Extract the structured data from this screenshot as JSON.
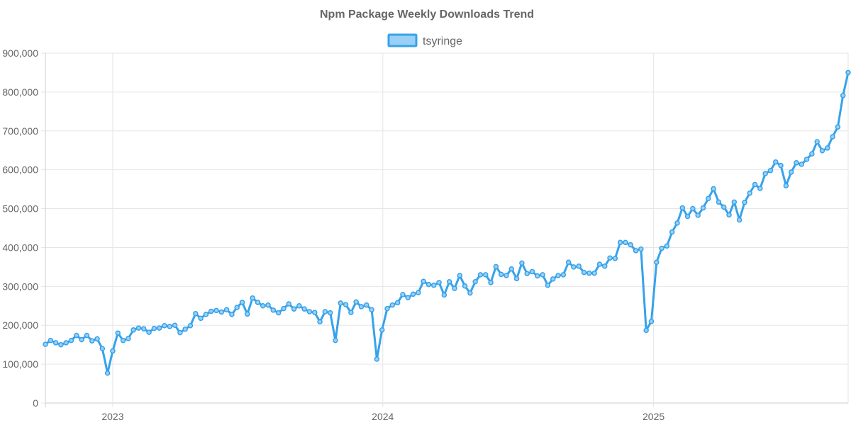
{
  "chart_data": {
    "type": "line",
    "title": "Npm Package Weekly Downloads Trend",
    "xlabel": "",
    "ylabel": "",
    "ylim": [
      0,
      900000
    ],
    "yticks": [
      0,
      100000,
      200000,
      300000,
      400000,
      500000,
      600000,
      700000,
      800000,
      900000
    ],
    "ytick_labels": [
      "0",
      "100,000",
      "200,000",
      "300,000",
      "400,000",
      "500,000",
      "600,000",
      "700,000",
      "800,000",
      "900,000"
    ],
    "xlim": [
      "2022-10-02",
      "2025-09-21"
    ],
    "xticks": [
      "2023-01-01",
      "2024-01-01",
      "2025-01-01"
    ],
    "xtick_labels": [
      "2023",
      "2024",
      "2025"
    ],
    "grid": true,
    "legend": {
      "position": "top-center"
    },
    "colors": {
      "line": "#36a2eb",
      "fill": "#9ad0f5"
    },
    "x_start": "2022-10-02",
    "x_step_days": 7,
    "series": [
      {
        "name": "tsyringe",
        "values": [
          151000,
          161000,
          155000,
          150000,
          155000,
          161000,
          174000,
          163000,
          174000,
          160000,
          165000,
          140000,
          77000,
          134000,
          180000,
          161000,
          166000,
          188000,
          193000,
          191000,
          182000,
          192000,
          193000,
          199000,
          197000,
          200000,
          181000,
          190000,
          199000,
          230000,
          218000,
          228000,
          236000,
          238000,
          234000,
          240000,
          228000,
          246000,
          259000,
          229000,
          270000,
          259000,
          250000,
          252000,
          239000,
          232000,
          243000,
          255000,
          242000,
          250000,
          242000,
          235000,
          233000,
          209000,
          235000,
          232000,
          161000,
          257000,
          253000,
          233000,
          260000,
          248000,
          252000,
          240000,
          113000,
          188000,
          243000,
          252000,
          258000,
          279000,
          271000,
          280000,
          284000,
          313000,
          305000,
          303000,
          310000,
          278000,
          312000,
          295000,
          328000,
          301000,
          283000,
          312000,
          330000,
          330000,
          310000,
          351000,
          331000,
          328000,
          345000,
          320000,
          360000,
          333000,
          338000,
          327000,
          330000,
          303000,
          319000,
          328000,
          330000,
          362000,
          350000,
          352000,
          336000,
          334000,
          334000,
          357000,
          352000,
          373000,
          372000,
          413000,
          413000,
          407000,
          392000,
          396000,
          187000,
          210000,
          362000,
          398000,
          404000,
          440000,
          463000,
          502000,
          480000,
          500000,
          483000,
          502000,
          526000,
          551000,
          517000,
          504000,
          484000,
          517000,
          471000,
          516000,
          540000,
          562000,
          552000,
          590000,
          598000,
          620000,
          611000,
          559000,
          594000,
          618000,
          614000,
          627000,
          641000,
          672000,
          649000,
          656000,
          685000,
          710000,
          791000,
          850000
        ]
      }
    ]
  }
}
